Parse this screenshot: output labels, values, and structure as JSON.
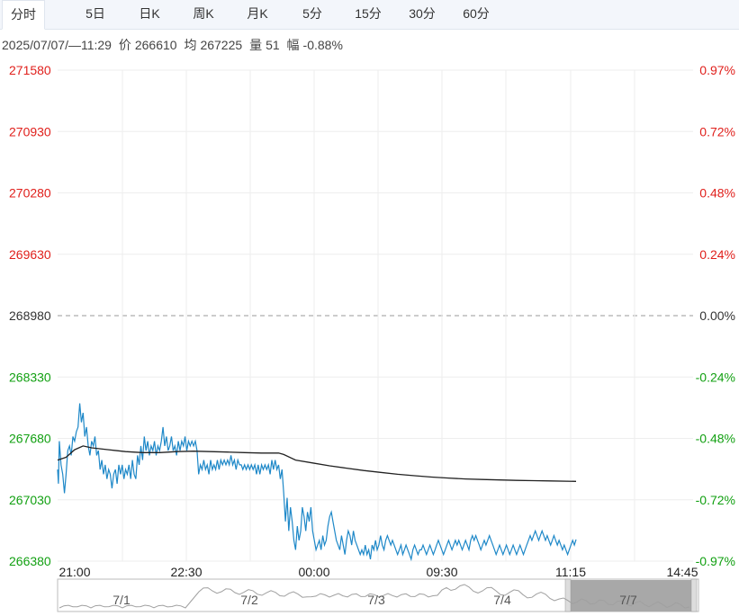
{
  "tabs": [
    "分时",
    "5日",
    "日K",
    "周K",
    "月K",
    "5分",
    "15分",
    "30分",
    "60分"
  ],
  "active_tab": 0,
  "info": {
    "datetime": "2025/07/07/—11:29",
    "price_label": "价",
    "price": "266610",
    "avg_label": "均",
    "avg": "267225",
    "vol_label": "量",
    "vol": "51",
    "range_label": "幅",
    "range": "-0.88%"
  },
  "colors": {
    "up": "#e0201c",
    "down": "#12a012",
    "neutral": "#333333",
    "price_line": "#1e88c8",
    "avg_line": "#222222"
  },
  "chart_data": {
    "type": "line",
    "prev_close": 268980,
    "ylim": [
      266380,
      271580
    ],
    "price_ticks": [
      "271580",
      "270930",
      "270280",
      "269630",
      "268980",
      "268330",
      "267680",
      "267030",
      "266380"
    ],
    "pct_ticks": [
      "0.97%",
      "0.72%",
      "0.48%",
      "0.24%",
      "0.00%",
      "-0.24%",
      "-0.48%",
      "-0.72%",
      "-0.97%"
    ],
    "time_ticks": [
      "21:00",
      "22:30",
      "00:00",
      "09:30",
      "11:15",
      "14:45"
    ],
    "price_series": [
      [
        0,
        267350
      ],
      [
        0.5,
        267200
      ],
      [
        1,
        267650
      ],
      [
        2,
        267400
      ],
      [
        3,
        267300
      ],
      [
        4,
        267100
      ],
      [
        5,
        267300
      ],
      [
        6,
        267550
      ],
      [
        7,
        267600
      ],
      [
        8,
        267500
      ],
      [
        9,
        267700
      ],
      [
        10,
        267650
      ],
      [
        11,
        267750
      ],
      [
        12,
        267800
      ],
      [
        13,
        268050
      ],
      [
        14,
        267850
      ],
      [
        15,
        267950
      ],
      [
        16,
        267700
      ],
      [
        17,
        267800
      ],
      [
        18,
        267600
      ],
      [
        19,
        267500
      ],
      [
        20,
        267650
      ],
      [
        21,
        267600
      ],
      [
        22,
        267700
      ],
      [
        23,
        267500
      ],
      [
        24,
        267550
      ],
      [
        25,
        267350
      ],
      [
        26,
        267450
      ],
      [
        27,
        267300
      ],
      [
        28,
        267400
      ],
      [
        29,
        267250
      ],
      [
        30,
        267350
      ],
      [
        31,
        267300
      ],
      [
        32,
        267150
      ],
      [
        33,
        267300
      ],
      [
        34,
        267350
      ],
      [
        35,
        267200
      ],
      [
        36,
        267400
      ],
      [
        37,
        267300
      ],
      [
        38,
        267400
      ],
      [
        39,
        267250
      ],
      [
        40,
        267350
      ],
      [
        41,
        267300
      ],
      [
        42,
        267400
      ],
      [
        43,
        267250
      ],
      [
        44,
        267450
      ],
      [
        45,
        267300
      ],
      [
        46,
        267250
      ],
      [
        47,
        267500
      ],
      [
        48,
        267400
      ],
      [
        49,
        267600
      ],
      [
        50,
        267450
      ],
      [
        51,
        267700
      ],
      [
        52,
        267550
      ],
      [
        53,
        267650
      ],
      [
        54,
        267500
      ],
      [
        55,
        267600
      ],
      [
        56,
        267550
      ],
      [
        57,
        267650
      ],
      [
        58,
        267500
      ],
      [
        59,
        267600
      ],
      [
        60,
        267550
      ],
      [
        61,
        267650
      ],
      [
        62,
        267800
      ],
      [
        63,
        267600
      ],
      [
        64,
        267700
      ],
      [
        65,
        267550
      ],
      [
        66,
        267600
      ],
      [
        67,
        267700
      ],
      [
        68,
        267550
      ],
      [
        69,
        267600
      ],
      [
        70,
        267500
      ],
      [
        71,
        267650
      ],
      [
        72,
        267550
      ],
      [
        73,
        267650
      ],
      [
        74,
        267600
      ],
      [
        75,
        267700
      ],
      [
        76,
        267550
      ],
      [
        77,
        267650
      ],
      [
        78,
        267600
      ],
      [
        79,
        267650
      ],
      [
        80,
        267600
      ],
      [
        81,
        267650
      ],
      [
        82,
        267550
      ],
      [
        83,
        267300
      ],
      [
        84,
        267400
      ],
      [
        85,
        267350
      ],
      [
        86,
        267450
      ],
      [
        87,
        267350
      ],
      [
        88,
        267400
      ],
      [
        89,
        267300
      ],
      [
        90,
        267450
      ],
      [
        91,
        267350
      ],
      [
        92,
        267400
      ],
      [
        93,
        267350
      ],
      [
        94,
        267450
      ],
      [
        95,
        267350
      ],
      [
        96,
        267450
      ],
      [
        97,
        267400
      ],
      [
        98,
        267450
      ],
      [
        99,
        267400
      ],
      [
        100,
        267450
      ],
      [
        101,
        267400
      ],
      [
        102,
        267500
      ],
      [
        103,
        267400
      ],
      [
        104,
        267450
      ],
      [
        105,
        267350
      ],
      [
        106,
        267450
      ],
      [
        107,
        267400
      ],
      [
        108,
        267400
      ],
      [
        109,
        267350
      ],
      [
        110,
        267400
      ],
      [
        111,
        267350
      ],
      [
        112,
        267400
      ],
      [
        113,
        267350
      ],
      [
        114,
        267400
      ],
      [
        115,
        267350
      ],
      [
        116,
        267400
      ],
      [
        117,
        267300
      ],
      [
        118,
        267400
      ],
      [
        119,
        267300
      ],
      [
        120,
        267400
      ],
      [
        121,
        267350
      ],
      [
        122,
        267400
      ],
      [
        123,
        267350
      ],
      [
        124,
        267400
      ],
      [
        125,
        267300
      ],
      [
        126,
        267450
      ],
      [
        127,
        267350
      ],
      [
        128,
        267450
      ],
      [
        129,
        267350
      ],
      [
        130,
        267400
      ],
      [
        131,
        267250
      ],
      [
        132,
        267350
      ],
      [
        133,
        267100
      ],
      [
        134,
        266800
      ],
      [
        135,
        267050
      ],
      [
        136,
        266700
      ],
      [
        137,
        266950
      ],
      [
        138,
        266800
      ],
      [
        139,
        266600
      ],
      [
        140,
        266500
      ],
      [
        141,
        266750
      ],
      [
        142,
        266600
      ],
      [
        143,
        266700
      ],
      [
        144,
        266950
      ],
      [
        145,
        266850
      ],
      [
        146,
        266700
      ],
      [
        147,
        266900
      ],
      [
        148,
        266800
      ],
      [
        149,
        266950
      ],
      [
        150,
        266700
      ],
      [
        151,
        266600
      ],
      [
        152,
        266500
      ],
      [
        153,
        266550
      ],
      [
        154,
        266600
      ],
      [
        155,
        266500
      ],
      [
        156,
        266650
      ],
      [
        157,
        266550
      ],
      [
        158,
        266600
      ],
      [
        159,
        266750
      ],
      [
        160,
        266850
      ],
      [
        161,
        266900
      ],
      [
        162,
        266800
      ],
      [
        163,
        266700
      ],
      [
        164,
        266600
      ],
      [
        165,
        266550
      ],
      [
        166,
        266500
      ],
      [
        167,
        266650
      ],
      [
        168,
        266550
      ],
      [
        169,
        266450
      ],
      [
        170,
        266600
      ],
      [
        171,
        266700
      ],
      [
        172,
        266650
      ],
      [
        173,
        266550
      ],
      [
        174,
        266700
      ],
      [
        175,
        266600
      ],
      [
        176,
        266550
      ],
      [
        177,
        266500
      ],
      [
        178,
        266450
      ],
      [
        179,
        266500
      ],
      [
        180,
        266450
      ],
      [
        181,
        266550
      ],
      [
        182,
        266450
      ],
      [
        183,
        266500
      ],
      [
        184,
        266400
      ],
      [
        185,
        266550
      ],
      [
        186,
        266500
      ],
      [
        187,
        266600
      ],
      [
        188,
        266500
      ],
      [
        189,
        266550
      ],
      [
        190,
        266650
      ],
      [
        191,
        266550
      ],
      [
        192,
        266500
      ],
      [
        193,
        266600
      ],
      [
        194,
        266650
      ],
      [
        195,
        266600
      ],
      [
        196,
        266550
      ],
      [
        197,
        266600
      ],
      [
        198,
        266550
      ],
      [
        199,
        266500
      ],
      [
        200,
        266450
      ],
      [
        201,
        266500
      ],
      [
        202,
        266550
      ],
      [
        203,
        266450
      ],
      [
        204,
        266500
      ],
      [
        205,
        266550
      ],
      [
        206,
        266500
      ],
      [
        207,
        266450
      ],
      [
        208,
        266400
      ],
      [
        209,
        266500
      ],
      [
        210,
        266550
      ],
      [
        211,
        266500
      ],
      [
        212,
        266450
      ],
      [
        213,
        266500
      ],
      [
        214,
        266500
      ],
      [
        215,
        266550
      ],
      [
        216,
        266500
      ],
      [
        217,
        266450
      ],
      [
        218,
        266500
      ],
      [
        219,
        266550
      ],
      [
        220,
        266500
      ],
      [
        221,
        266450
      ],
      [
        222,
        266500
      ],
      [
        223,
        266550
      ],
      [
        224,
        266600
      ],
      [
        225,
        266550
      ],
      [
        226,
        266500
      ],
      [
        227,
        266450
      ],
      [
        228,
        266500
      ],
      [
        229,
        266550
      ],
      [
        230,
        266600
      ],
      [
        231,
        266550
      ],
      [
        232,
        266500
      ],
      [
        233,
        266550
      ],
      [
        234,
        266600
      ],
      [
        235,
        266550
      ],
      [
        236,
        266600
      ],
      [
        237,
        266550
      ],
      [
        238,
        266500
      ],
      [
        239,
        266550
      ],
      [
        240,
        266600
      ],
      [
        241,
        266550
      ],
      [
        242,
        266500
      ],
      [
        243,
        266600
      ],
      [
        244,
        266650
      ],
      [
        245,
        266600
      ],
      [
        246,
        266650
      ],
      [
        247,
        266600
      ],
      [
        248,
        266550
      ],
      [
        249,
        266500
      ],
      [
        250,
        266550
      ],
      [
        251,
        266600
      ],
      [
        252,
        266550
      ],
      [
        253,
        266600
      ],
      [
        254,
        266650
      ],
      [
        255,
        266600
      ],
      [
        256,
        266550
      ],
      [
        257,
        266500
      ],
      [
        258,
        266450
      ],
      [
        259,
        266500
      ],
      [
        260,
        266550
      ],
      [
        261,
        266500
      ],
      [
        262,
        266450
      ],
      [
        263,
        266500
      ],
      [
        264,
        266550
      ],
      [
        265,
        266500
      ],
      [
        266,
        266450
      ],
      [
        267,
        266500
      ],
      [
        268,
        266550
      ],
      [
        269,
        266500
      ],
      [
        270,
        266450
      ],
      [
        271,
        266500
      ],
      [
        272,
        266550
      ],
      [
        273,
        266500
      ],
      [
        274,
        266450
      ],
      [
        275,
        266500
      ],
      [
        276,
        266550
      ],
      [
        277,
        266600
      ],
      [
        278,
        266650
      ],
      [
        279,
        266600
      ],
      [
        280,
        266650
      ],
      [
        281,
        266700
      ],
      [
        282,
        266650
      ],
      [
        283,
        266600
      ],
      [
        284,
        266650
      ],
      [
        285,
        266700
      ],
      [
        286,
        266650
      ],
      [
        287,
        266600
      ],
      [
        288,
        266650
      ],
      [
        289,
        266600
      ],
      [
        290,
        266550
      ],
      [
        291,
        266600
      ],
      [
        292,
        266650
      ],
      [
        293,
        266600
      ],
      [
        294,
        266550
      ],
      [
        295,
        266600
      ],
      [
        296,
        266550
      ],
      [
        297,
        266500
      ],
      [
        298,
        266550
      ],
      [
        299,
        266500
      ],
      [
        300,
        266450
      ],
      [
        301,
        266500
      ],
      [
        302,
        266550
      ],
      [
        303,
        266600
      ],
      [
        304,
        266550
      ],
      [
        305,
        266610
      ]
    ],
    "avg_series": [
      [
        0,
        267450
      ],
      [
        5,
        267480
      ],
      [
        10,
        267560
      ],
      [
        15,
        267600
      ],
      [
        20,
        267580
      ],
      [
        30,
        267560
      ],
      [
        40,
        267540
      ],
      [
        50,
        267530
      ],
      [
        60,
        267530
      ],
      [
        70,
        267540
      ],
      [
        80,
        267545
      ],
      [
        90,
        267540
      ],
      [
        100,
        267535
      ],
      [
        110,
        267530
      ],
      [
        120,
        267525
      ],
      [
        130,
        267525
      ],
      [
        133,
        267510
      ],
      [
        140,
        267450
      ],
      [
        150,
        267420
      ],
      [
        160,
        267390
      ],
      [
        170,
        267365
      ],
      [
        180,
        267340
      ],
      [
        190,
        267320
      ],
      [
        200,
        267300
      ],
      [
        210,
        267285
      ],
      [
        220,
        267270
      ],
      [
        230,
        267260
      ],
      [
        240,
        267250
      ],
      [
        250,
        267245
      ],
      [
        260,
        267240
      ],
      [
        270,
        267235
      ],
      [
        280,
        267232
      ],
      [
        290,
        267230
      ],
      [
        305,
        267225
      ]
    ],
    "session_x": {
      "21:00": 0,
      "22:30": 60,
      "00:00": 120,
      "09:30": 180,
      "11:15": 240,
      "14:45": 295
    },
    "x_max": 295,
    "minimap_dates": [
      "7/1",
      "7/2",
      "7/3",
      "7/4",
      "7/7"
    ]
  }
}
